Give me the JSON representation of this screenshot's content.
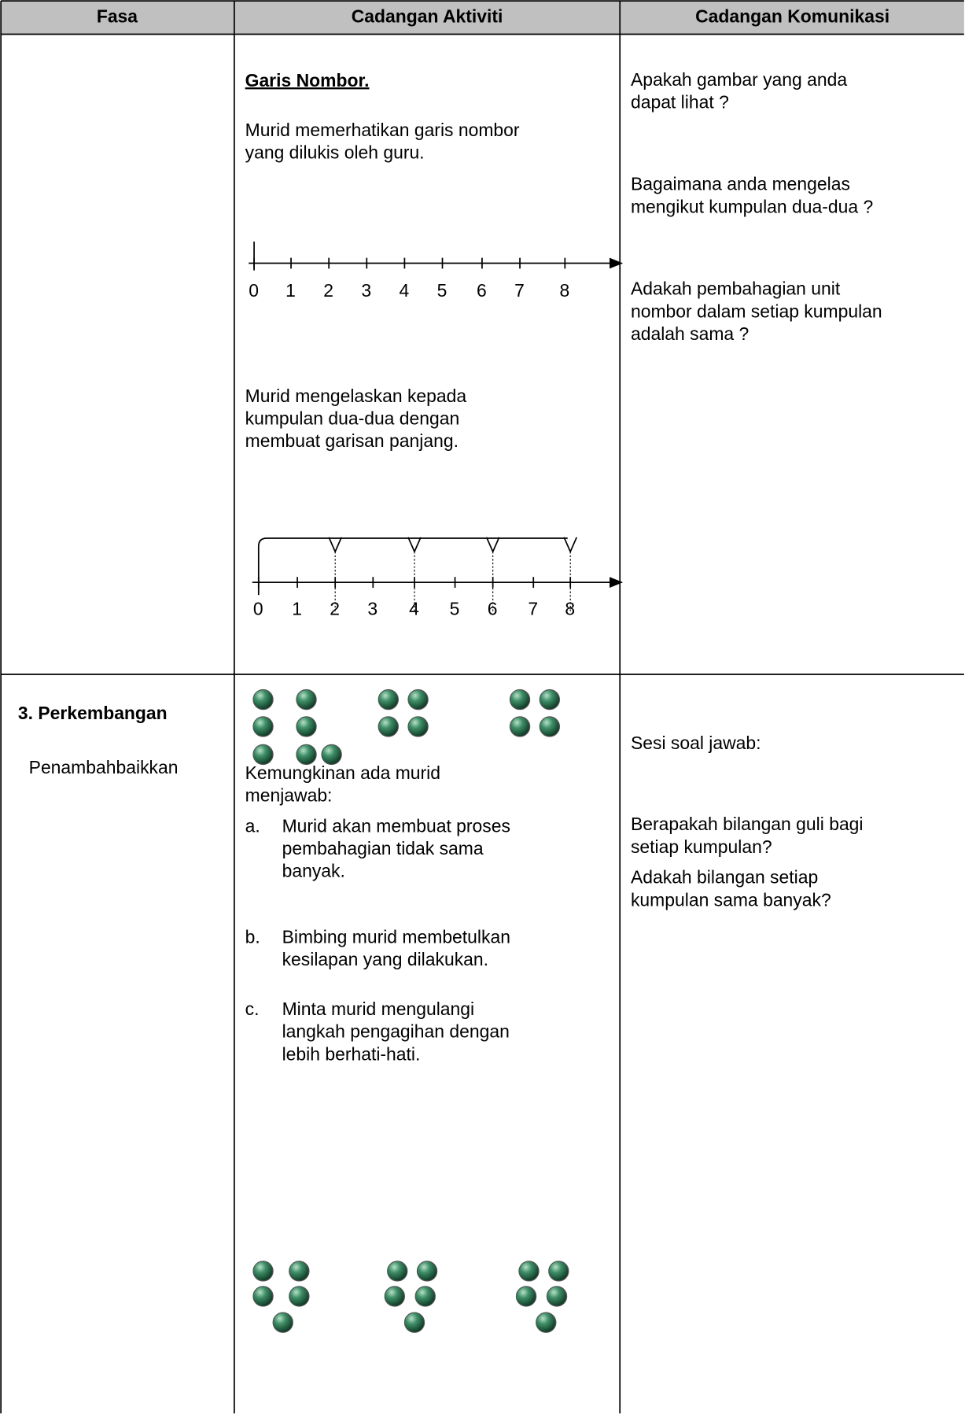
{
  "header": {
    "columns": [
      "Fasa",
      "Cadangan Aktiviti",
      "Cadangan Komunikasi"
    ]
  },
  "rows": [
    {
      "activity": {
        "heading": "Garis Nombor.",
        "paragraphs": [
          [
            "Murid memerhatikan garis nombor",
            "yang dilukis oleh guru."
          ],
          [
            "Murid mengelaskan kepada",
            "kumpulan dua-dua dengan",
            "membuat garisan panjang."
          ]
        ],
        "number_line_1": [
          "0",
          "1",
          "2",
          "3",
          "4",
          "5",
          "6",
          "7",
          "8"
        ],
        "number_line_2": [
          "0",
          "1",
          "2",
          "3",
          "4",
          "5",
          "6",
          "7",
          "8"
        ]
      },
      "communication": [
        [
          "Apakah gambar yang anda",
          "dapat lihat ?"
        ],
        [
          "Bagaimana anda mengelas",
          "mengikut kumpulan dua-dua ?"
        ],
        [
          "Adakah pembahagian unit",
          "nombor  dalam setiap kumpulan",
          "adalah sama ?"
        ]
      ]
    },
    {
      "phase": {
        "title": "3.  Perkembangan",
        "subtitle": "Penambahbaikkan"
      },
      "activity": {
        "intro": [
          "Kemungkinan ada murid",
          "menjawab:"
        ],
        "items": [
          {
            "marker": "a.",
            "lines": [
              "Murid akan membuat proses",
              "pembahagian tidak sama",
              "banyak."
            ]
          },
          {
            "marker": "b.",
            "lines": [
              "Bimbing murid membetulkan",
              "kesilapan yang dilakukan."
            ]
          },
          {
            "marker": "c.",
            "lines": [
              "Minta murid mengulangi",
              "langkah pengagihan dengan",
              "lebih berhati-hati."
            ]
          }
        ]
      },
      "communication": [
        [
          "Sesi soal jawab:"
        ],
        [
          "Berapakah bilangan guli bagi",
          "setiap kumpulan?"
        ],
        [
          "Adakah bilangan setiap",
          "kumpulan sama banyak?"
        ]
      ]
    }
  ]
}
